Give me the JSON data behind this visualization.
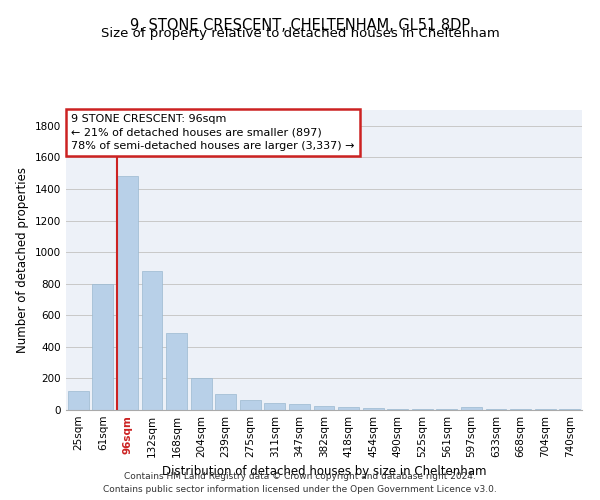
{
  "title1": "9, STONE CRESCENT, CHELTENHAM, GL51 8DP",
  "title2": "Size of property relative to detached houses in Cheltenham",
  "xlabel": "Distribution of detached houses by size in Cheltenham",
  "ylabel": "Number of detached properties",
  "categories": [
    "25sqm",
    "61sqm",
    "96sqm",
    "132sqm",
    "168sqm",
    "204sqm",
    "239sqm",
    "275sqm",
    "311sqm",
    "347sqm",
    "382sqm",
    "418sqm",
    "454sqm",
    "490sqm",
    "525sqm",
    "561sqm",
    "597sqm",
    "633sqm",
    "668sqm",
    "704sqm",
    "740sqm"
  ],
  "values": [
    120,
    800,
    1480,
    880,
    490,
    200,
    100,
    65,
    45,
    35,
    25,
    20,
    10,
    5,
    5,
    5,
    20,
    5,
    5,
    5,
    5
  ],
  "bar_color": "#b8d0e8",
  "bar_edge_color": "#9ab8d0",
  "highlight_bar_index": 2,
  "highlight_color": "#cc2222",
  "annotation_line1": "9 STONE CRESCENT: 96sqm",
  "annotation_line2": "← 21% of detached houses are smaller (897)",
  "annotation_line3": "78% of semi-detached houses are larger (3,337) →",
  "annotation_box_color": "#cc2222",
  "ylim": [
    0,
    1900
  ],
  "yticks": [
    0,
    200,
    400,
    600,
    800,
    1000,
    1200,
    1400,
    1600,
    1800
  ],
  "grid_color": "#c8c8c8",
  "background_color": "#edf1f8",
  "footnote1": "Contains HM Land Registry data © Crown copyright and database right 2024.",
  "footnote2": "Contains public sector information licensed under the Open Government Licence v3.0.",
  "title_fontsize": 10.5,
  "subtitle_fontsize": 9.5,
  "xlabel_fontsize": 8.5,
  "ylabel_fontsize": 8.5,
  "tick_fontsize": 7.5,
  "annotation_fontsize": 8,
  "footnote_fontsize": 6.5
}
